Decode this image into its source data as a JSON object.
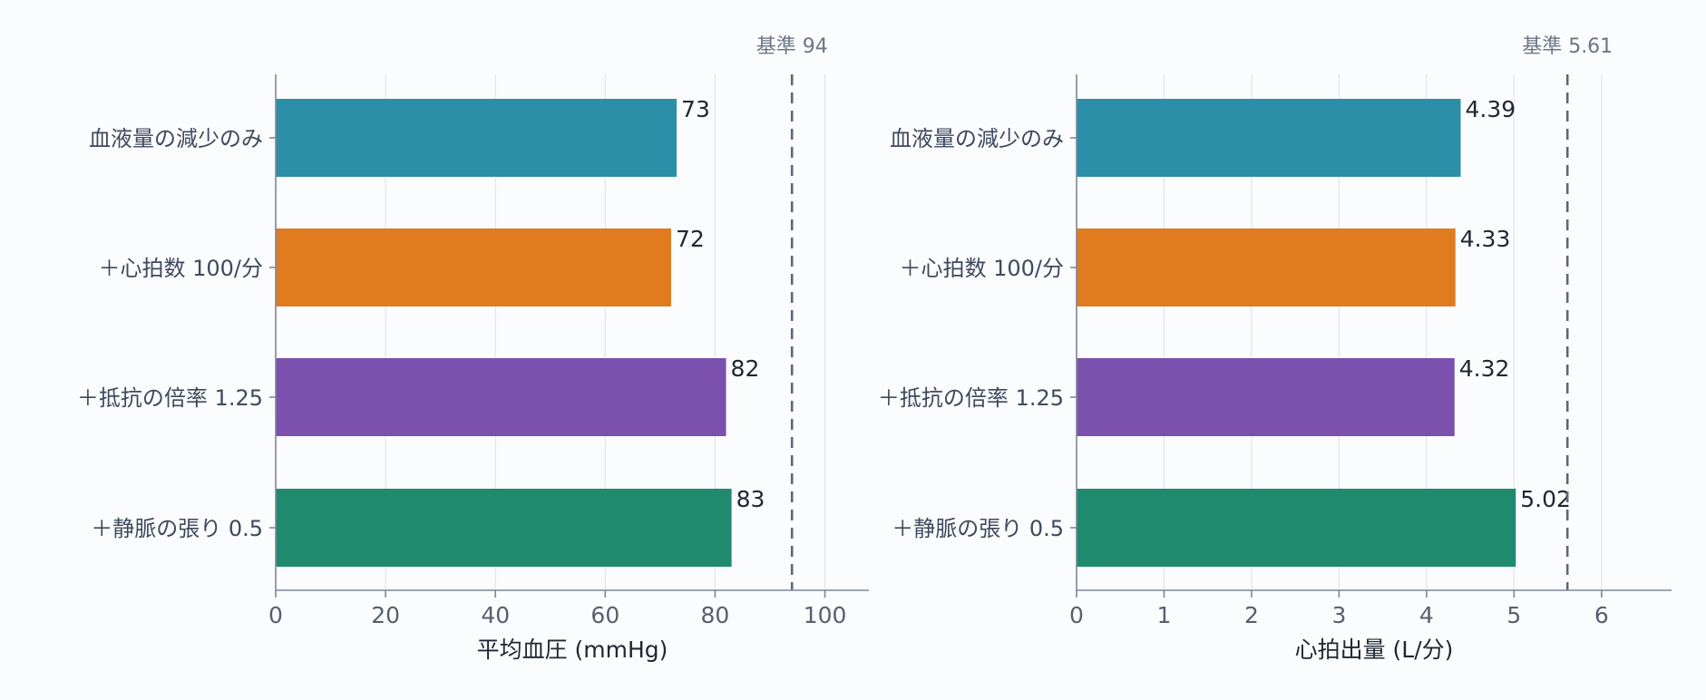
{
  "chart_data": [
    {
      "type": "bar",
      "orientation": "horizontal",
      "categories": [
        "血液量の減少のみ",
        "＋心拍数 100/分",
        "＋抵抗の倍率 1.25",
        "＋静脈の張り 0.5"
      ],
      "values": [
        73,
        72,
        82,
        83
      ],
      "value_labels": [
        "73",
        "72",
        "82",
        "83"
      ],
      "colors": [
        "#2b8fa8",
        "#e07b20",
        "#7b50ae",
        "#1f8a6e"
      ],
      "xlabel": "平均血圧 (mmHg)",
      "xlim": [
        0,
        108
      ],
      "xticks": [
        0,
        20,
        40,
        60,
        80,
        100
      ],
      "reference": {
        "value": 94,
        "label": "基準 94"
      },
      "grid": "vertical"
    },
    {
      "type": "bar",
      "orientation": "horizontal",
      "categories": [
        "血液量の減少のみ",
        "＋心拍数 100/分",
        "＋抵抗の倍率 1.25",
        "＋静脈の張り 0.5"
      ],
      "values": [
        4.39,
        4.33,
        4.32,
        5.02
      ],
      "value_labels": [
        "4.39",
        "4.33",
        "4.32",
        "5.02"
      ],
      "colors": [
        "#2b8fa8",
        "#e07b20",
        "#7b50ae",
        "#1f8a6e"
      ],
      "xlabel": "心拍出量 (L/分)",
      "xlim": [
        0,
        6.8
      ],
      "xticks": [
        0,
        1,
        2,
        3,
        4,
        5,
        6
      ],
      "reference": {
        "value": 5.61,
        "label": "基準 5.61"
      },
      "grid": "vertical"
    }
  ]
}
